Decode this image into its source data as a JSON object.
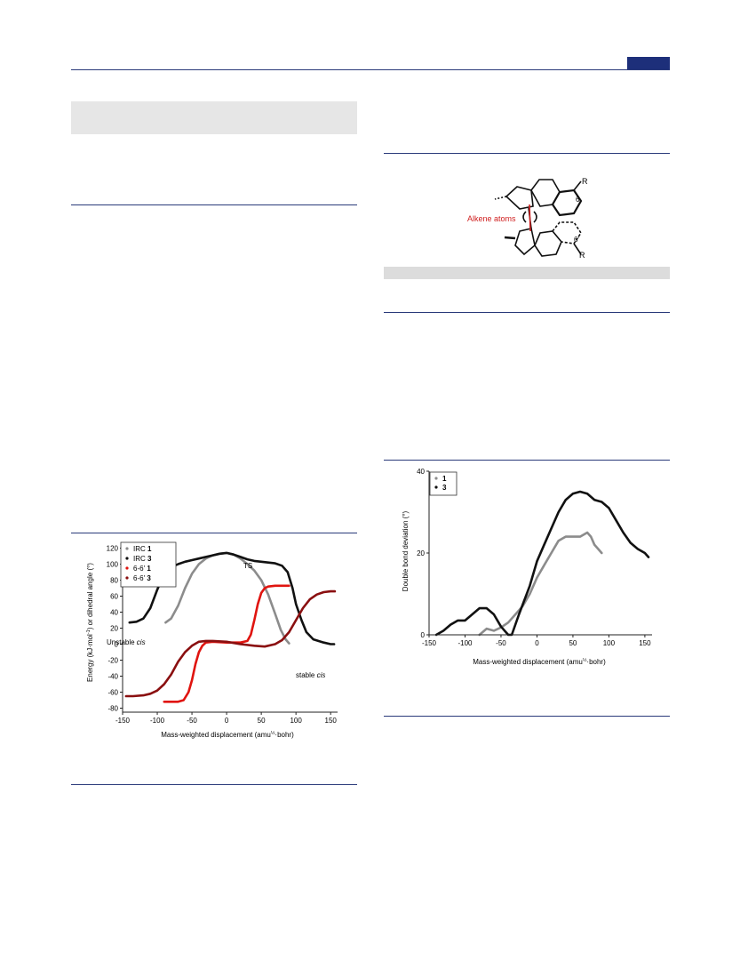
{
  "scheme": {
    "label_r_top": "R",
    "label_6": "6",
    "label_alkene": "Alkene atoms",
    "label_6prime": "6'",
    "label_r_bottom": "R"
  },
  "chart_data": [
    {
      "type": "line",
      "xlabel_pre": "Mass-weighted displacement (amu",
      "xlabel_sup": "½",
      "xlabel_post": "·bohr)",
      "ylabel_pre": "Energy (kJ·mol",
      "ylabel_sup": "-1",
      "ylabel_post": ") or dihedral angle (°)",
      "xlim": [
        -150,
        160
      ],
      "ylim": [
        -85,
        125
      ],
      "xticks": [
        -150,
        -100,
        -50,
        0,
        50,
        100,
        150
      ],
      "yticks": [
        -80,
        -60,
        -40,
        -20,
        0,
        20,
        40,
        60,
        80,
        100,
        120
      ],
      "legend_position": "top-left",
      "annotations": {
        "ts": "TS",
        "unstable": "Unstable ",
        "unstable_italic": "cis",
        "stable": "stable ",
        "stable_italic": "cis"
      },
      "series": [
        {
          "name": "IRC",
          "label_bold": "1",
          "color": "#8c8c8c",
          "x": [
            -88,
            -80,
            -70,
            -60,
            -50,
            -40,
            -30,
            -20,
            -10,
            0,
            10,
            20,
            30,
            40,
            50,
            60,
            70,
            78,
            85,
            90
          ],
          "y": [
            27,
            32,
            48,
            70,
            88,
            100,
            107,
            111,
            113,
            114,
            112,
            107,
            100,
            92,
            80,
            62,
            38,
            18,
            6,
            1
          ]
        },
        {
          "name": "IRC",
          "label_bold": "3",
          "color": "#111111",
          "x": [
            -140,
            -130,
            -120,
            -110,
            -100,
            -90,
            -80,
            -70,
            -60,
            -50,
            -40,
            -30,
            -20,
            -10,
            0,
            10,
            20,
            30,
            40,
            50,
            60,
            70,
            80,
            88,
            95,
            100,
            108,
            115,
            125,
            140,
            150,
            155
          ],
          "y": [
            27,
            28,
            32,
            45,
            68,
            88,
            96,
            100,
            103,
            105,
            107,
            109,
            111,
            113,
            114,
            112,
            109,
            106,
            104,
            103,
            102,
            101,
            98,
            90,
            70,
            50,
            30,
            15,
            6,
            2,
            0,
            0
          ]
        },
        {
          "name": "6-6'",
          "label_bold": "1",
          "color": "#e0140f",
          "x": [
            -90,
            -80,
            -70,
            -62,
            -55,
            -50,
            -45,
            -40,
            -35,
            -30,
            -20,
            0,
            20,
            30,
            35,
            40,
            45,
            50,
            55,
            60,
            70,
            80,
            90
          ],
          "y": [
            -72,
            -72,
            -72,
            -70,
            -60,
            -45,
            -25,
            -10,
            -2,
            2,
            3,
            2,
            2,
            4,
            12,
            30,
            50,
            64,
            70,
            72,
            73,
            73,
            73
          ]
        },
        {
          "name": "6-6'",
          "label_bold": "3",
          "color": "#8a0f10",
          "x": [
            -145,
            -135,
            -120,
            -110,
            -100,
            -90,
            -80,
            -70,
            -60,
            -50,
            -40,
            -30,
            -20,
            0,
            20,
            40,
            55,
            70,
            80,
            90,
            100,
            110,
            120,
            130,
            140,
            150,
            156
          ],
          "y": [
            -65,
            -65,
            -64,
            -62,
            -58,
            -50,
            -38,
            -22,
            -10,
            -2,
            3,
            4,
            4,
            3,
            0,
            -2,
            -3,
            0,
            5,
            15,
            30,
            45,
            56,
            62,
            65,
            66,
            66
          ]
        }
      ]
    },
    {
      "type": "line",
      "xlabel_pre": "Mass-weighted displacement (amu",
      "xlabel_sup": "½",
      "xlabel_post": "·bohr)",
      "ylabel": "Double bond deviation (°)",
      "xlim": [
        -150,
        160
      ],
      "ylim": [
        0,
        40
      ],
      "xticks": [
        -150,
        -100,
        -50,
        0,
        50,
        100,
        150
      ],
      "yticks": [
        0,
        20,
        40
      ],
      "legend_position": "top-left",
      "series": [
        {
          "name": "1",
          "color": "#8c8c8c",
          "x": [
            -80,
            -70,
            -60,
            -50,
            -40,
            -30,
            -20,
            -10,
            0,
            10,
            20,
            30,
            40,
            50,
            60,
            70,
            75,
            80,
            85,
            90
          ],
          "y": [
            0,
            1.5,
            1,
            1.8,
            3,
            5,
            7,
            10,
            14,
            17,
            20,
            23,
            24,
            24,
            24,
            25,
            24,
            22,
            21,
            20
          ]
        },
        {
          "name": "3",
          "color": "#111111",
          "x": [
            -140,
            -130,
            -120,
            -110,
            -100,
            -90,
            -80,
            -70,
            -60,
            -50,
            -40,
            -35,
            -25,
            -10,
            0,
            10,
            20,
            30,
            40,
            50,
            60,
            70,
            80,
            90,
            100,
            110,
            120,
            130,
            140,
            150,
            155
          ],
          "y": [
            0,
            1,
            2.5,
            3.5,
            3.5,
            5,
            6.5,
            6.5,
            5,
            2,
            0,
            0,
            5,
            12,
            18,
            22,
            26,
            30,
            33,
            34.5,
            35,
            34.5,
            33,
            32.5,
            31,
            28,
            25,
            22.5,
            21,
            20,
            19
          ]
        }
      ]
    }
  ]
}
